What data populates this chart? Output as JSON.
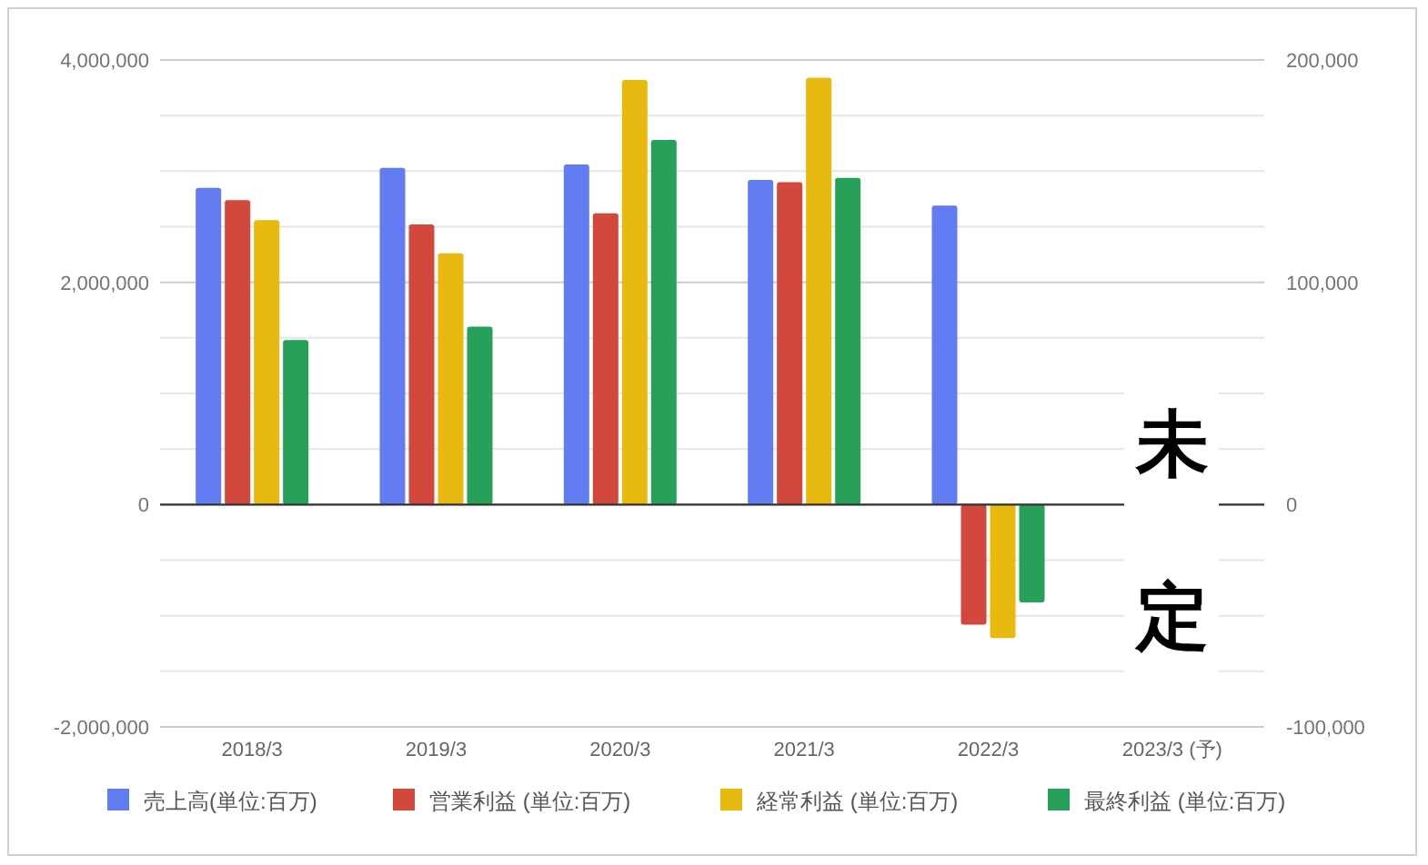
{
  "chart_data": {
    "type": "bar",
    "categories": [
      "2018/3",
      "2019/3",
      "2020/3",
      "2021/3",
      "2022/3",
      "2023/3 (予)"
    ],
    "series": [
      {
        "name": "売上高(単位:百万)",
        "color": "#627cf2",
        "values": [
          2850000,
          3030000,
          3060000,
          2920000,
          2690000,
          null
        ]
      },
      {
        "name": "営業利益 (単位:百万)",
        "color": "#d2483d",
        "axis": "y2",
        "values": [
          137000,
          126000,
          131000,
          145000,
          -54000,
          null
        ]
      },
      {
        "name": "経常利益 (単位:百万)",
        "color": "#e8b90f",
        "axis": "y2",
        "values": [
          128000,
          113000,
          191000,
          192000,
          -60000,
          null
        ]
      },
      {
        "name": "最終利益 (単位:百万)",
        "color": "#27a05a",
        "axis": "y2",
        "values": [
          74000,
          80000,
          164000,
          147000,
          -44000,
          null
        ]
      }
    ],
    "ylim": [
      -2000000,
      4000000
    ],
    "yticks": [
      {
        "value": -2000000,
        "label": "-2,000,000"
      },
      {
        "value": -1500000,
        "label": null
      },
      {
        "value": -1000000,
        "label": null
      },
      {
        "value": -500000,
        "label": null
      },
      0,
      {
        "value": 500000,
        "label": null
      },
      {
        "value": 1000000,
        "label": null
      },
      {
        "value": 1500000,
        "label": null
      },
      {
        "value": 2000000,
        "label": "2,000,000"
      },
      {
        "value": 2500000,
        "label": null
      },
      {
        "value": 3000000,
        "label": null
      },
      {
        "value": 3500000,
        "label": null
      },
      {
        "value": 4000000,
        "label": "4,000,000"
      }
    ],
    "y2lim": [
      -100000,
      200000
    ],
    "y2ticks": [
      {
        "value": -100000,
        "label": "-100,000"
      },
      0,
      {
        "value": 100000,
        "label": "100,000"
      },
      {
        "value": 200000,
        "label": "200,000"
      }
    ],
    "grid": true,
    "legend": "bottom",
    "annotations": [
      "未定"
    ]
  }
}
